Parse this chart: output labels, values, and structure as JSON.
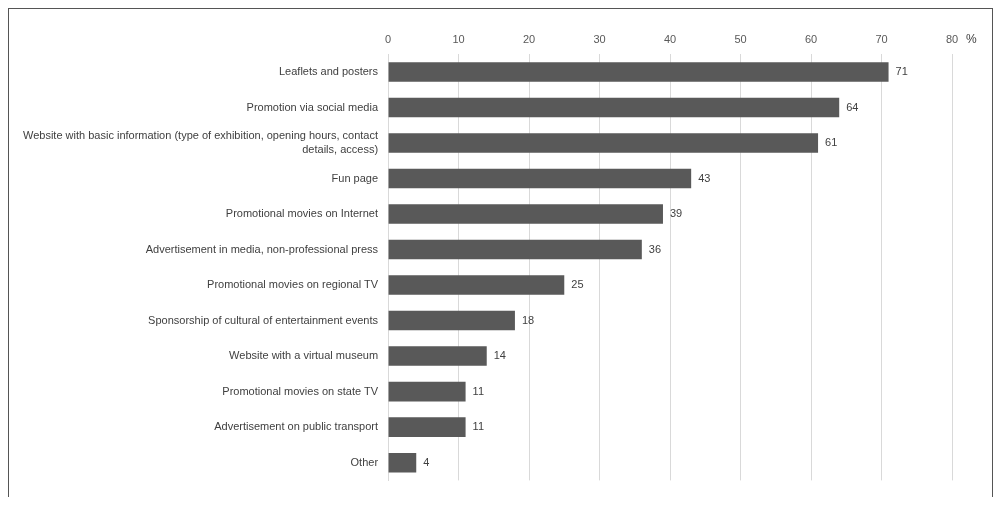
{
  "chart_data": {
    "type": "bar",
    "orientation": "horizontal",
    "xlabel": "%",
    "categories": [
      "Leaflets and posters",
      "Promotion via social media",
      "Website with basic information (type of exhibition, opening hours, contact details, access)",
      "Fun page",
      "Promotional movies on Internet",
      "Advertisement in media, non-professional press",
      "Promotional movies on regional TV",
      "Sponsorship of cultural of entertainment events",
      "Website with a virtual museum",
      "Promotional movies on state TV",
      "Advertisement on public transport",
      "Other"
    ],
    "values": [
      71,
      64,
      61,
      43,
      39,
      36,
      25,
      18,
      14,
      11,
      11,
      4
    ],
    "color": "#595959",
    "xlim": [
      0,
      80
    ],
    "xticks": [
      0,
      10,
      20,
      30,
      40,
      50,
      60,
      70,
      80
    ],
    "grid": "x",
    "data_labels": true,
    "legend": false
  }
}
